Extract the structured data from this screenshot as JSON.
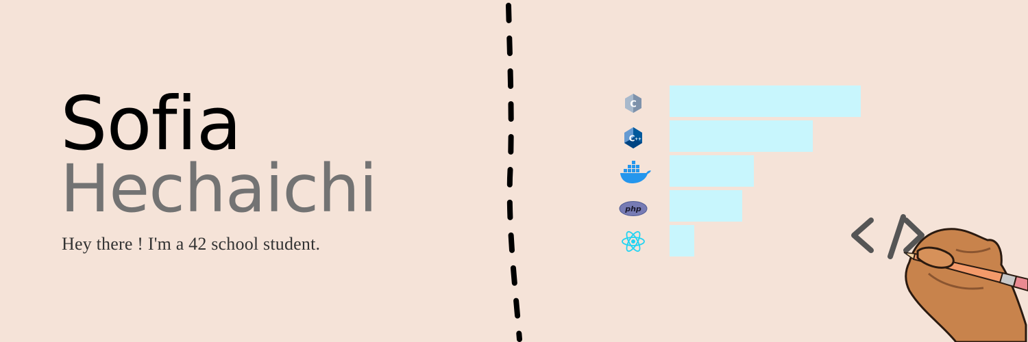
{
  "profile": {
    "first_name": "Sofia",
    "last_name": "Hechaichi",
    "tagline": "Hey there ! I'm a 42 school student."
  },
  "chart_data": {
    "type": "bar",
    "orientation": "horizontal",
    "categories": [
      "C",
      "C++",
      "Docker",
      "PHP",
      "React"
    ],
    "values": [
      100,
      75,
      44,
      38,
      13
    ],
    "xlim": [
      0,
      100
    ],
    "bar_color": "#c8f6fd",
    "title": "",
    "xlabel": "",
    "ylabel": "",
    "grid": false
  },
  "icons": {
    "c": "c-language-icon",
    "cpp": "cpp-language-icon",
    "docker": "docker-icon",
    "php": "php-icon",
    "react": "react-icon",
    "code_art": "code-brackets-hand-pencil-illustration"
  },
  "colors": {
    "background": "#f5e3d8",
    "first_name": "#000000",
    "last_name": "#737373",
    "bar": "#c8f6fd",
    "divider": "#000000"
  }
}
